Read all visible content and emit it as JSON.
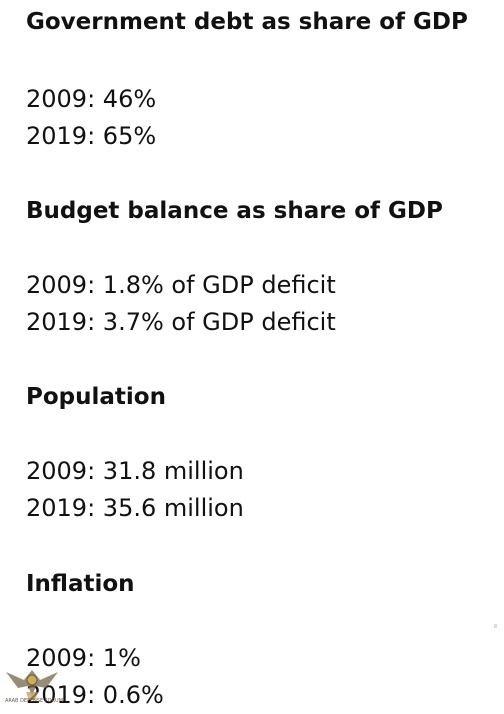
{
  "sections": [
    {
      "title": "Government debt as share of GDP",
      "lines": [
        "2009: 46%",
        "2019: 65%"
      ]
    },
    {
      "title": "Budget balance as share of GDP",
      "lines": [
        "2009: 1.8% of GDP deficit",
        "2019: 3.7% of GDP deficit"
      ]
    },
    {
      "title": "Population",
      "lines": [
        "2009: 31.8 million",
        "2019: 35.6 million"
      ]
    },
    {
      "title": "Inflation",
      "lines": [
        "2009: 1%",
        "2019: 0.6%"
      ]
    }
  ],
  "watermark": {
    "text": "ARAB DEFENSE FORUM",
    "icon": "eagle-logo-icon"
  }
}
